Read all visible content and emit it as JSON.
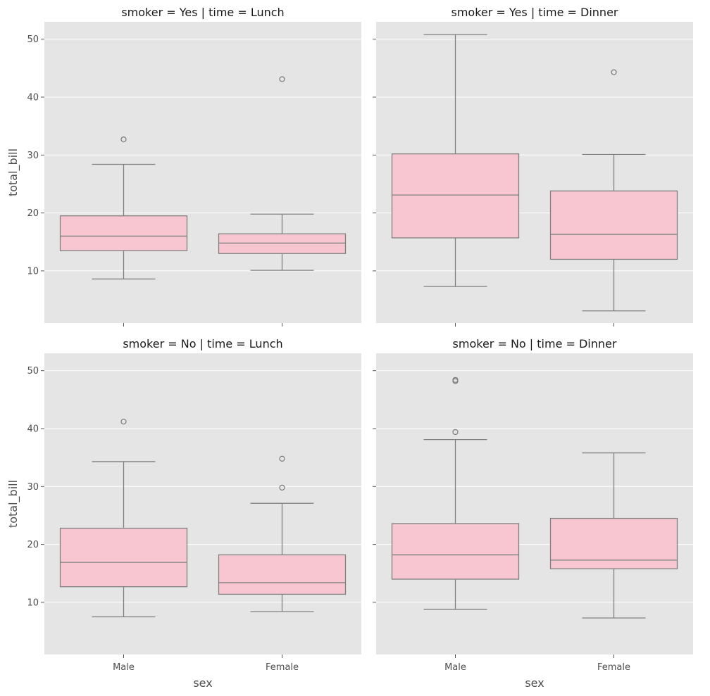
{
  "colors": {
    "box_fill": "#f8c6d1",
    "box_edge": "#808080",
    "panel_bg": "#e5e5e5",
    "grid": "#ffffff"
  },
  "chart_data": {
    "type": "boxplot",
    "xlabel": "sex",
    "ylabel": "total_bill",
    "ylim": [
      1,
      53
    ],
    "yticks": [
      10,
      20,
      30,
      40,
      50
    ],
    "categories": [
      "Male",
      "Female"
    ],
    "grid": true,
    "panels": [
      {
        "title": "smoker = Yes | time = Lunch",
        "boxes": [
          {
            "category": "Male",
            "whislo": 8.6,
            "q1": 13.5,
            "med": 16.0,
            "q3": 19.5,
            "whishi": 28.4,
            "fliers": [
              32.7
            ]
          },
          {
            "category": "Female",
            "whislo": 10.1,
            "q1": 13.0,
            "med": 14.8,
            "q3": 16.4,
            "whishi": 19.8,
            "fliers": [
              43.1
            ]
          }
        ]
      },
      {
        "title": "smoker = Yes | time = Dinner",
        "boxes": [
          {
            "category": "Male",
            "whislo": 7.3,
            "q1": 15.7,
            "med": 23.1,
            "q3": 30.2,
            "whishi": 50.8,
            "fliers": []
          },
          {
            "category": "Female",
            "whislo": 3.1,
            "q1": 12.0,
            "med": 16.3,
            "q3": 23.8,
            "whishi": 30.1,
            "fliers": [
              44.3
            ]
          }
        ]
      },
      {
        "title": "smoker = No | time = Lunch",
        "boxes": [
          {
            "category": "Male",
            "whislo": 7.5,
            "q1": 12.7,
            "med": 16.9,
            "q3": 22.8,
            "whishi": 34.3,
            "fliers": [
              41.2
            ]
          },
          {
            "category": "Female",
            "whislo": 8.4,
            "q1": 11.4,
            "med": 13.4,
            "q3": 18.2,
            "whishi": 27.1,
            "fliers": [
              29.8,
              34.8
            ]
          }
        ]
      },
      {
        "title": "smoker = No | time = Dinner",
        "boxes": [
          {
            "category": "Male",
            "whislo": 8.8,
            "q1": 14.0,
            "med": 18.2,
            "q3": 23.6,
            "whishi": 38.1,
            "fliers": [
              39.4,
              48.2,
              48.4
            ]
          },
          {
            "category": "Female",
            "whislo": 7.3,
            "q1": 15.8,
            "med": 17.3,
            "q3": 24.5,
            "whishi": 35.8,
            "fliers": []
          }
        ]
      }
    ]
  }
}
